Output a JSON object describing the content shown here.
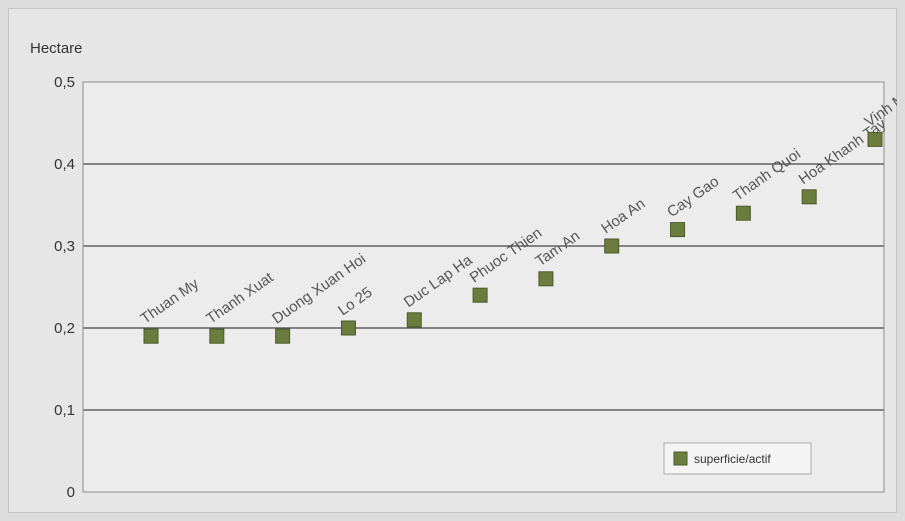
{
  "chart_data": {
    "type": "scatter",
    "ylabel": "Hectare",
    "ylim": [
      0,
      0.5
    ],
    "yticks": [
      {
        "value": 0,
        "label": "0"
      },
      {
        "value": 0.1,
        "label": "0,1"
      },
      {
        "value": 0.2,
        "label": "0,2"
      },
      {
        "value": 0.3,
        "label": "0,3"
      },
      {
        "value": 0.4,
        "label": "0,4"
      },
      {
        "value": 0.5,
        "label": "0,5"
      }
    ],
    "grid": true,
    "legend_position": "bottom-right",
    "series": [
      {
        "name": "superficie/actif",
        "color": "#6b7d3e",
        "points": [
          {
            "label": "Thuan My",
            "y": 0.19
          },
          {
            "label": "Thanh Xuat",
            "y": 0.19
          },
          {
            "label": "Duong Xuan Hoi",
            "y": 0.19
          },
          {
            "label": "Lo 25",
            "y": 0.2
          },
          {
            "label": "Duc Lap Ha",
            "y": 0.21
          },
          {
            "label": "Phuoc Thien",
            "y": 0.24
          },
          {
            "label": "Tam An",
            "y": 0.26
          },
          {
            "label": "Hoa An",
            "y": 0.3
          },
          {
            "label": "Cay Gao",
            "y": 0.32
          },
          {
            "label": "Thanh Quoi",
            "y": 0.34
          },
          {
            "label": "Hoa Khanh Tay",
            "y": 0.36
          },
          {
            "label": "Vinh My A",
            "y": 0.43
          }
        ]
      }
    ]
  }
}
